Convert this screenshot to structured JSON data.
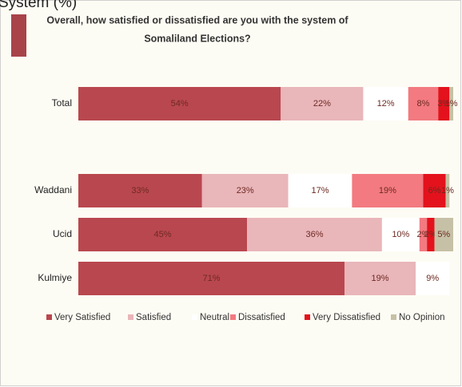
{
  "chart_data": {
    "type": "stacked_barh",
    "subtitle": "System (%)",
    "title": [
      "Overall, how satisfied or dissatisfied are you with the system of",
      "Somaliland Elections?"
    ],
    "categories": [
      "Total",
      "Waddani",
      "Ucid",
      "Kulmiye"
    ],
    "series": [
      {
        "name": "Very Satisfied",
        "color": "#b9474f",
        "values": [
          54,
          33,
          45,
          71
        ],
        "value_labels": [
          "54%",
          "33%",
          "45%",
          "71%"
        ]
      },
      {
        "name": "Satisfied",
        "color": "#e9b6ba",
        "values": [
          22,
          23,
          36,
          19
        ],
        "value_labels": [
          "22%",
          "23%",
          "36%",
          "19%"
        ]
      },
      {
        "name": "Neutral",
        "color": "#ffffff",
        "values": [
          12,
          17,
          10,
          9
        ],
        "value_labels": [
          "12%",
          "17%",
          "10%",
          "9%"
        ]
      },
      {
        "name": "Dissatisfied",
        "color": "#f27a80",
        "values": [
          8,
          19,
          2,
          null
        ],
        "value_labels": [
          "8%",
          "19%",
          "2%",
          null
        ]
      },
      {
        "name": "Very Dissatisfied",
        "color": "#e3121c",
        "values": [
          3,
          6,
          2,
          null
        ],
        "value_labels": [
          "3%",
          "6%",
          "2%",
          null
        ]
      },
      {
        "name": "No Opinion",
        "color": "#c6c1a6",
        "values": [
          1,
          1,
          5,
          null
        ],
        "value_labels": [
          "1%",
          "1%",
          "5%",
          null
        ]
      }
    ]
  }
}
